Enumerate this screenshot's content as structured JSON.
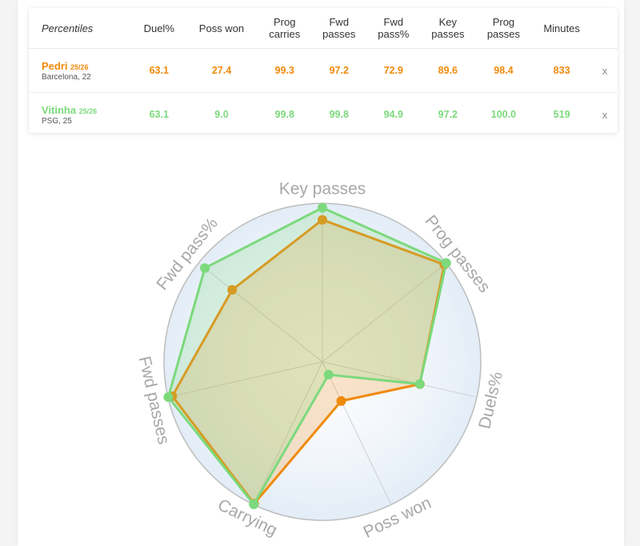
{
  "table": {
    "header_first": "Percentiles",
    "columns": [
      [
        "Duel%"
      ],
      [
        "Poss won"
      ],
      [
        "Prog",
        "carries"
      ],
      [
        "Fwd",
        "passes"
      ],
      [
        "Fwd",
        "pass%"
      ],
      [
        "Key",
        "passes"
      ],
      [
        "Prog",
        "passes"
      ],
      [
        "Minutes"
      ]
    ],
    "rows": [
      {
        "name": "Pedri",
        "season": "25/26",
        "club": "Barcelona, 22",
        "color": "#f08a0c",
        "values": [
          "63.1",
          "27.4",
          "99.3",
          "97.2",
          "72.9",
          "89.6",
          "98.4",
          "833"
        ],
        "remove": "x"
      },
      {
        "name": "Vitinha",
        "season": "25/26",
        "club": "PSG, 25",
        "color": "#7cd97c",
        "values": [
          "63.1",
          "9.0",
          "99.8",
          "99.8",
          "94.9",
          "97.2",
          "100.0",
          "519"
        ],
        "remove": "x"
      }
    ]
  },
  "chart_data": {
    "type": "radar",
    "axes": [
      "Key passes",
      "Prog passes",
      "Duels%",
      "Poss won",
      "Carrying",
      "Fwd passes",
      "Fwd pass%"
    ],
    "range": [
      0,
      100
    ],
    "series": [
      {
        "name": "Pedri",
        "color": "#f08a0c",
        "values": [
          89.6,
          98.4,
          63.1,
          27.4,
          99.3,
          97.2,
          72.9
        ]
      },
      {
        "name": "Vitinha",
        "color": "#7cd97c",
        "values": [
          97.2,
          100.0,
          63.1,
          9.0,
          99.8,
          99.8,
          94.9
        ]
      }
    ]
  }
}
